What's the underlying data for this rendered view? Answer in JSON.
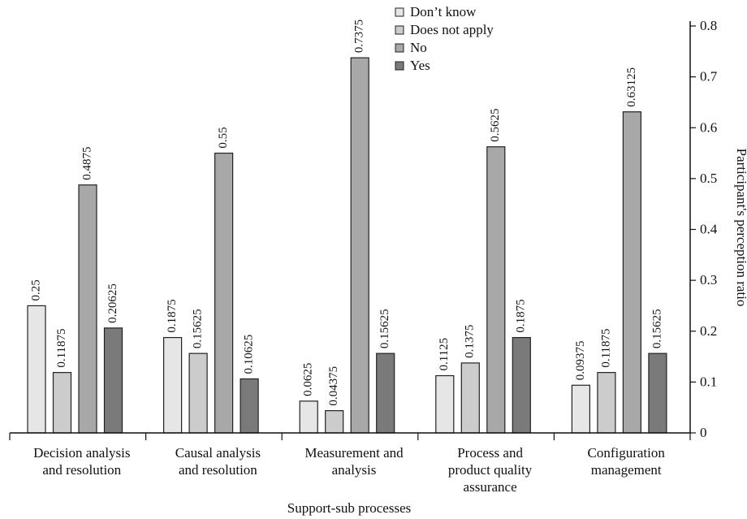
{
  "chart_data": {
    "type": "bar",
    "categories": [
      [
        "Decision analysis",
        "and resolution"
      ],
      [
        "Causal analysis",
        "and resolution"
      ],
      [
        "Measurement and",
        "analysis"
      ],
      [
        "Process and",
        "product quality",
        "assurance"
      ],
      [
        "Configuration",
        "management"
      ]
    ],
    "series": [
      {
        "name": "Don’t know",
        "color": "#e6e6e6",
        "values": [
          0.25,
          0.1875,
          0.0625,
          0.1125,
          0.09375
        ],
        "labels": [
          "0.25",
          "0.1875",
          "0.0625",
          "0.1125",
          "0.09375"
        ]
      },
      {
        "name": "Does not apply",
        "color": "#cccccc",
        "values": [
          0.11875,
          0.15625,
          0.04375,
          0.1375,
          0.11875
        ],
        "labels": [
          "0.11875",
          "0.15625",
          "0.04375",
          "0.1375",
          "0.11875"
        ]
      },
      {
        "name": "No",
        "color": "#a8a8a8",
        "values": [
          0.4875,
          0.55,
          0.7375,
          0.5625,
          0.63125
        ],
        "labels": [
          "0.4875",
          "0.55",
          "0.7375",
          "0.5625",
          "0.63125"
        ]
      },
      {
        "name": "Yes",
        "color": "#7a7a7a",
        "values": [
          0.20625,
          0.10625,
          0.15625,
          0.1875,
          0.15625
        ],
        "labels": [
          "0.20625",
          "0.10625",
          "0.15625",
          "0.1875",
          "0.15625"
        ]
      }
    ],
    "xlabel": "Support-sub processes",
    "ylabel": "Participant's perception  ratio",
    "ylim": [
      0,
      0.8
    ],
    "yticks": [
      "0",
      "0.1",
      "0.2",
      "0.3",
      "0.4",
      "0.5",
      "0.6",
      "0.7",
      "0.8"
    ],
    "y_axis_side": "right",
    "legend_position": "top-center",
    "grid": false
  }
}
